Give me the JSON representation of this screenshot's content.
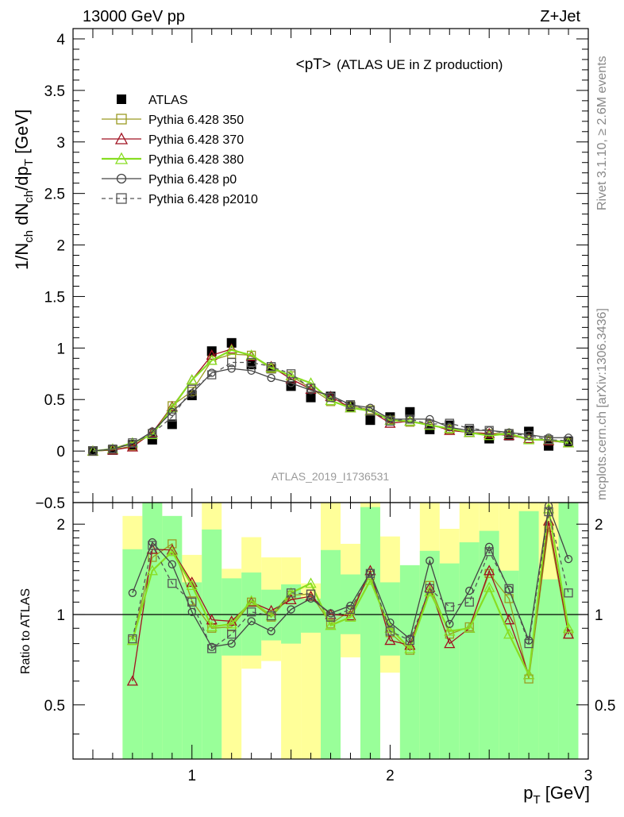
{
  "header": {
    "energy_label": "13000 GeV pp",
    "process_label": "Z+Jet"
  },
  "side": {
    "rivet_label": "Rivet 3.1.10, ≥ 2.6M events",
    "mcplots_label": "mcplots.cern.ch [arXiv:1306.3436]"
  },
  "chart_data": [
    {
      "type": "line",
      "title": "<pT>",
      "subtitle": "(ATLAS UE in Z production)",
      "analysis_label": "ATLAS_2019_I1736531",
      "ylabel": "1/N_ch dN_ch/dp_T [GeV]",
      "xlabel": "",
      "xlim": [
        0.4,
        3.0
      ],
      "ylim": [
        -0.5,
        4.1
      ],
      "yticks": [
        -0.5,
        0,
        0.5,
        1,
        1.5,
        2,
        2.5,
        3,
        3.5,
        4
      ],
      "ytick_labels": [
        "−0.5",
        "0",
        "0.5",
        "1",
        "1.5",
        "2",
        "2.5",
        "3",
        "3.5",
        "4"
      ],
      "legend_position": "top-left",
      "x": [
        0.5,
        0.6,
        0.7,
        0.8,
        0.9,
        1.0,
        1.1,
        1.2,
        1.3,
        1.4,
        1.5,
        1.6,
        1.7,
        1.8,
        1.9,
        2.0,
        2.1,
        2.2,
        2.3,
        2.4,
        2.5,
        2.6,
        2.7,
        2.8,
        2.9
      ],
      "series": [
        {
          "name": "ATLAS",
          "color": "#000000",
          "marker": "filled-square",
          "dashed": false,
          "values": [
            0.0,
            0.01,
            0.06,
            0.11,
            0.26,
            0.54,
            0.97,
            1.05,
            0.84,
            0.8,
            0.63,
            0.52,
            0.53,
            0.43,
            0.3,
            0.33,
            0.38,
            0.21,
            0.25,
            0.2,
            0.12,
            0.15,
            0.19,
            0.05,
            0.09
          ]
        },
        {
          "name": "Pythia 6.428 350",
          "color": "#9a9a22",
          "marker": "open-square",
          "dashed": false,
          "values": [
            0.0,
            0.01,
            0.05,
            0.17,
            0.44,
            0.58,
            0.88,
            0.94,
            0.93,
            0.8,
            0.73,
            0.61,
            0.48,
            0.44,
            0.4,
            0.3,
            0.28,
            0.26,
            0.21,
            0.18,
            0.17,
            0.17,
            0.12,
            0.1,
            0.08
          ]
        },
        {
          "name": "Pythia 6.428 370",
          "color": "#a01020",
          "marker": "open-triangle",
          "dashed": false,
          "values": [
            0.0,
            0.01,
            0.04,
            0.18,
            0.43,
            0.69,
            0.93,
            0.99,
            0.92,
            0.82,
            0.7,
            0.6,
            0.53,
            0.42,
            0.39,
            0.27,
            0.29,
            0.26,
            0.2,
            0.18,
            0.17,
            0.15,
            0.12,
            0.1,
            0.08
          ]
        },
        {
          "name": "Pythia 6.428 380",
          "color": "#88dd22",
          "marker": "open-triangle",
          "dashed": false,
          "values": [
            0.0,
            0.02,
            0.08,
            0.16,
            0.42,
            0.69,
            0.88,
            0.98,
            0.93,
            0.81,
            0.73,
            0.66,
            0.49,
            0.42,
            0.39,
            0.3,
            0.29,
            0.25,
            0.22,
            0.18,
            0.15,
            0.17,
            0.11,
            0.11,
            0.08
          ]
        },
        {
          "name": "Pythia 6.428 p0",
          "color": "#444444",
          "marker": "open-circle",
          "dashed": false,
          "values": [
            0.0,
            0.02,
            0.07,
            0.19,
            0.38,
            0.56,
            0.76,
            0.8,
            0.78,
            0.71,
            0.66,
            0.59,
            0.54,
            0.45,
            0.42,
            0.31,
            0.31,
            0.31,
            0.23,
            0.2,
            0.2,
            0.18,
            0.16,
            0.13,
            0.13
          ]
        },
        {
          "name": "Pythia 6.428 p2010",
          "color": "#555555",
          "marker": "open-square",
          "dashed": true,
          "values": [
            0.0,
            0.02,
            0.08,
            0.17,
            0.33,
            0.6,
            0.74,
            0.86,
            0.86,
            0.82,
            0.75,
            0.61,
            0.52,
            0.45,
            0.39,
            0.29,
            0.31,
            0.26,
            0.27,
            0.22,
            0.2,
            0.17,
            0.15,
            0.11,
            0.1
          ]
        }
      ]
    },
    {
      "type": "line",
      "title": "",
      "ylabel": "Ratio to ATLAS",
      "xlabel": "p_T [GeV]",
      "xlim": [
        0.4,
        3.0
      ],
      "xticks": [
        1,
        2,
        3
      ],
      "xtick_labels": [
        "1",
        "2",
        "3"
      ],
      "ylim": [
        0.33,
        2.36
      ],
      "ylog": true,
      "yticks": [
        0.5,
        1,
        2
      ],
      "ytick_labels": [
        "0.5",
        "1",
        "2"
      ],
      "reference_line": 1,
      "band_yellow": [
        [
          0.65,
          0.75,
          0.33,
          2.13
        ],
        [
          0.75,
          0.85,
          0.33,
          2.36
        ],
        [
          0.85,
          0.95,
          0.33,
          1.92
        ],
        [
          0.95,
          1.05,
          0.7,
          1.58
        ],
        [
          1.05,
          1.15,
          0.33,
          2.36
        ],
        [
          1.15,
          1.25,
          0.33,
          1.42
        ],
        [
          1.25,
          1.35,
          0.66,
          1.81
        ],
        [
          1.35,
          1.45,
          0.7,
          1.55
        ],
        [
          1.45,
          1.55,
          0.33,
          1.55
        ],
        [
          1.55,
          1.65,
          0.33,
          1.27
        ],
        [
          1.65,
          1.75,
          0.33,
          2.36
        ],
        [
          1.75,
          1.85,
          0.72,
          1.72
        ],
        [
          1.85,
          1.95,
          0.33,
          2.36
        ],
        [
          1.95,
          2.05,
          0.64,
          1.82
        ],
        [
          2.05,
          2.15,
          0.33,
          1.44
        ],
        [
          2.15,
          2.25,
          0.33,
          2.36
        ],
        [
          2.25,
          2.35,
          0.53,
          1.93
        ],
        [
          2.35,
          2.45,
          0.33,
          2.36
        ],
        [
          2.45,
          2.55,
          0.53,
          2.36
        ],
        [
          2.55,
          2.65,
          0.33,
          2.36
        ],
        [
          2.65,
          2.75,
          0.33,
          2.36
        ],
        [
          2.75,
          2.85,
          0.33,
          2.36
        ],
        [
          2.85,
          2.95,
          0.53,
          2.36
        ]
      ],
      "band_green": [
        [
          0.65,
          0.75,
          0.33,
          1.65
        ],
        [
          0.75,
          0.85,
          0.33,
          2.36
        ],
        [
          0.85,
          0.95,
          0.33,
          2.13
        ],
        [
          0.95,
          1.05,
          0.33,
          1.28
        ],
        [
          1.05,
          1.15,
          0.33,
          1.92
        ],
        [
          1.15,
          1.25,
          0.73,
          1.32
        ],
        [
          1.25,
          1.35,
          0.73,
          1.38
        ],
        [
          1.35,
          1.45,
          0.82,
          1.21
        ],
        [
          1.45,
          1.55,
          0.8,
          1.26
        ],
        [
          1.55,
          1.65,
          0.87,
          1.13
        ],
        [
          1.65,
          1.75,
          0.33,
          1.64
        ],
        [
          1.75,
          1.85,
          0.86,
          1.36
        ],
        [
          1.85,
          1.95,
          0.33,
          2.28
        ],
        [
          1.95,
          2.05,
          0.73,
          1.28
        ],
        [
          2.05,
          2.15,
          0.33,
          1.46
        ],
        [
          2.15,
          2.25,
          0.33,
          1.63
        ],
        [
          2.25,
          2.35,
          0.33,
          1.48
        ],
        [
          2.35,
          2.45,
          0.33,
          1.74
        ],
        [
          2.45,
          2.55,
          0.33,
          1.9
        ],
        [
          2.55,
          2.65,
          0.33,
          1.4
        ],
        [
          2.65,
          2.75,
          0.33,
          2.21
        ],
        [
          2.75,
          2.85,
          0.33,
          1.31
        ],
        [
          2.85,
          2.95,
          0.33,
          2.36
        ]
      ],
      "x": [
        0.7,
        0.8,
        0.9,
        1.0,
        1.1,
        1.2,
        1.3,
        1.4,
        1.5,
        1.6,
        1.7,
        1.8,
        1.9,
        2.0,
        2.1,
        2.2,
        2.3,
        2.4,
        2.5,
        2.6,
        2.7,
        2.8,
        2.9
      ],
      "series": [
        {
          "name": "Pythia 6.428 350",
          "color": "#9a9a22",
          "marker": "open-square",
          "dashed": false,
          "values": [
            0.82,
            1.55,
            1.72,
            1.11,
            0.9,
            0.91,
            1.1,
            0.98,
            1.16,
            1.17,
            0.93,
            1.03,
            1.35,
            0.87,
            0.76,
            1.25,
            0.86,
            0.91,
            1.37,
            1.13,
            0.61,
            1.95,
            0.86
          ]
        },
        {
          "name": "Pythia 6.428 370",
          "color": "#a01020",
          "marker": "open-triangle",
          "dashed": false,
          "values": [
            0.6,
            1.65,
            1.64,
            1.28,
            0.96,
            0.95,
            1.1,
            1.03,
            1.12,
            1.15,
            1.0,
            0.99,
            1.4,
            0.82,
            0.79,
            1.23,
            0.8,
            0.9,
            1.4,
            0.96,
            0.63,
            2.05,
            0.86
          ]
        },
        {
          "name": "Pythia 6.428 380",
          "color": "#88dd22",
          "marker": "open-triangle",
          "dashed": false,
          "values": [
            0.82,
            1.4,
            1.62,
            1.25,
            0.91,
            0.93,
            1.11,
            0.99,
            1.18,
            1.27,
            0.92,
            0.98,
            1.3,
            0.9,
            0.77,
            1.19,
            0.88,
            0.9,
            1.23,
            0.86,
            0.63,
            2.25,
            0.9
          ]
        },
        {
          "name": "Pythia 6.428 p0",
          "color": "#444444",
          "marker": "open-circle",
          "dashed": false,
          "values": [
            1.18,
            1.74,
            1.47,
            1.02,
            0.78,
            0.8,
            0.95,
            0.88,
            1.04,
            1.13,
            1.01,
            1.07,
            1.38,
            0.94,
            0.83,
            1.51,
            0.93,
            1.2,
            1.68,
            1.21,
            0.82,
            2.3,
            1.53
          ]
        },
        {
          "name": "Pythia 6.428 p2010",
          "color": "#555555",
          "marker": "open-square",
          "dashed": true,
          "values": [
            0.83,
            1.7,
            1.27,
            1.1,
            0.77,
            0.86,
            1.02,
            0.99,
            1.18,
            1.17,
            0.98,
            1.04,
            1.37,
            0.88,
            0.82,
            1.22,
            1.06,
            1.1,
            1.62,
            1.22,
            0.8,
            2.2,
            1.18
          ]
        }
      ]
    }
  ]
}
